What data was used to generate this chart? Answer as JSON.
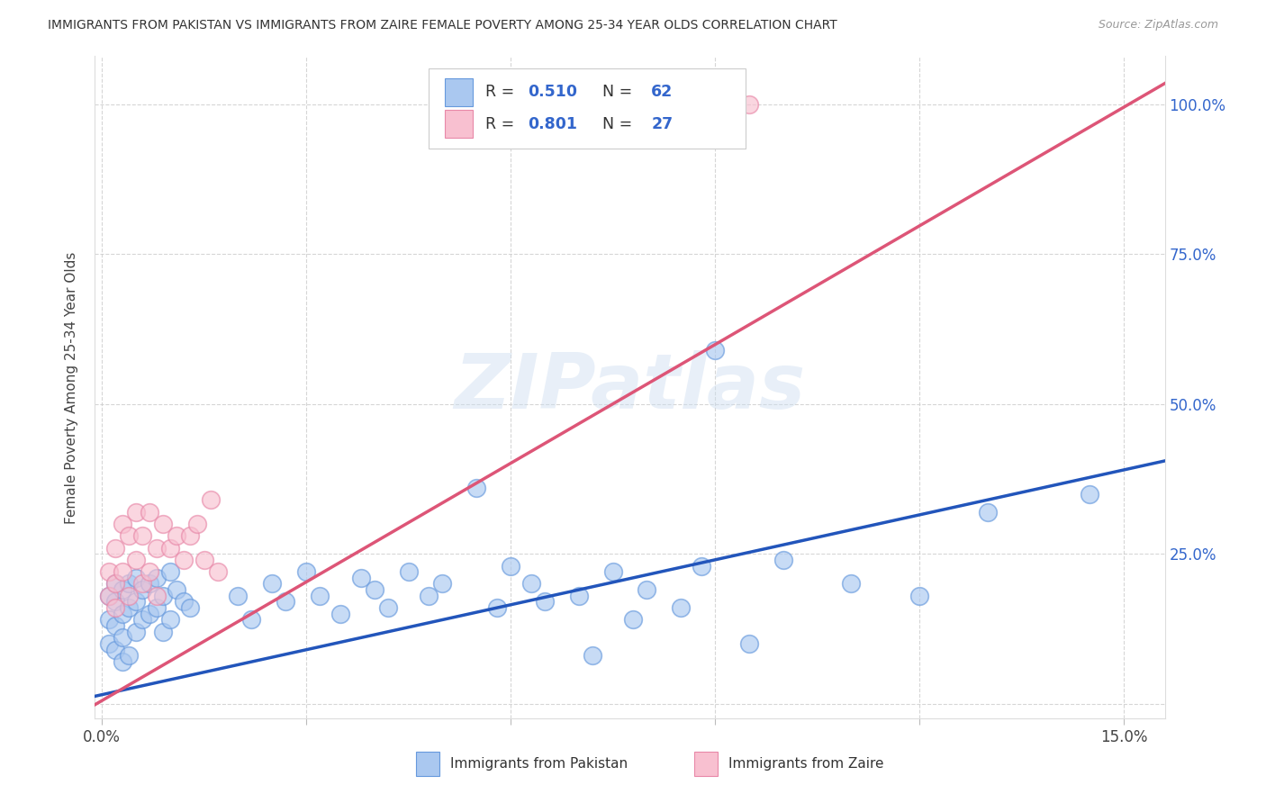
{
  "title": "IMMIGRANTS FROM PAKISTAN VS IMMIGRANTS FROM ZAIRE FEMALE POVERTY AMONG 25-34 YEAR OLDS CORRELATION CHART",
  "source": "Source: ZipAtlas.com",
  "ylabel_label": "Female Poverty Among 25-34 Year Olds",
  "xlim": [
    -0.001,
    0.156
  ],
  "ylim": [
    -0.025,
    1.08
  ],
  "x_ticks": [
    0.0,
    0.03,
    0.06,
    0.09,
    0.12,
    0.15
  ],
  "x_tick_labels": [
    "0.0%",
    "",
    "",
    "",
    "",
    "15.0%"
  ],
  "y_ticks": [
    0.0,
    0.25,
    0.5,
    0.75,
    1.0
  ],
  "y_tick_labels": [
    "",
    "25.0%",
    "50.0%",
    "75.0%",
    "100.0%"
  ],
  "pakistan_color": "#aac8f0",
  "pakistan_edge": "#6699dd",
  "zaire_color": "#f8c0d0",
  "zaire_edge": "#e888a8",
  "pakistan_line_color": "#2255bb",
  "zaire_line_color": "#dd5577",
  "pakistan_R": 0.51,
  "pakistan_N": 62,
  "zaire_R": 0.801,
  "zaire_N": 27,
  "pak_intercept": 0.015,
  "pak_slope": 2.5,
  "zaire_intercept": 0.005,
  "zaire_slope": 6.6,
  "watermark": "ZIPatlas",
  "bottom_label_pak": "Immigrants from Pakistan",
  "bottom_label_zaire": "Immigrants from Zaire",
  "legend_color_r": "#3366cc",
  "legend_color_n": "#3366cc"
}
